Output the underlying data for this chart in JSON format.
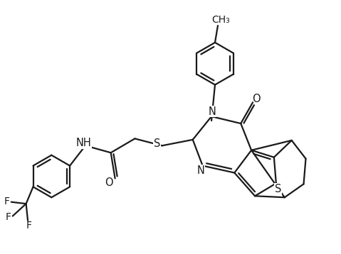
{
  "bg_color": "#ffffff",
  "line_color": "#1a1a1a",
  "line_width": 1.6,
  "font_size": 10.5,
  "figsize": [
    4.79,
    3.58
  ],
  "dpi": 100,
  "xlim": [
    0,
    9.58
  ],
  "ylim": [
    0,
    7.16
  ]
}
